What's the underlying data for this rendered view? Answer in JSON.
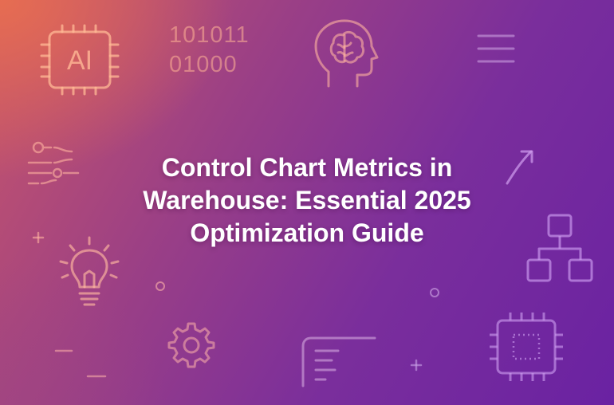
{
  "banner": {
    "title": "Control Chart Metrics in Warehouse: Essential 2025 Optimization Guide",
    "binary_lines": [
      "101011",
      "01000"
    ],
    "chip_label": "AI"
  },
  "colors": {
    "gradient_start": "#e86e50",
    "gradient_mid": "#9a3f86",
    "gradient_end": "#6a22a2",
    "title_text": "#ffffff",
    "icon_warm": "#ffb496",
    "icon_cool": "#c69be8"
  },
  "icons": [
    "ai-chip-icon",
    "binary-code-icon",
    "brain-head-icon",
    "menu-lines-icon",
    "sliders-icon",
    "trend-arrow-icon",
    "org-chart-icon",
    "lightbulb-icon",
    "gear-icon",
    "document-lines-icon",
    "processor-chip-icon",
    "plus-icon",
    "circle-dot-icon",
    "dash-icon"
  ]
}
